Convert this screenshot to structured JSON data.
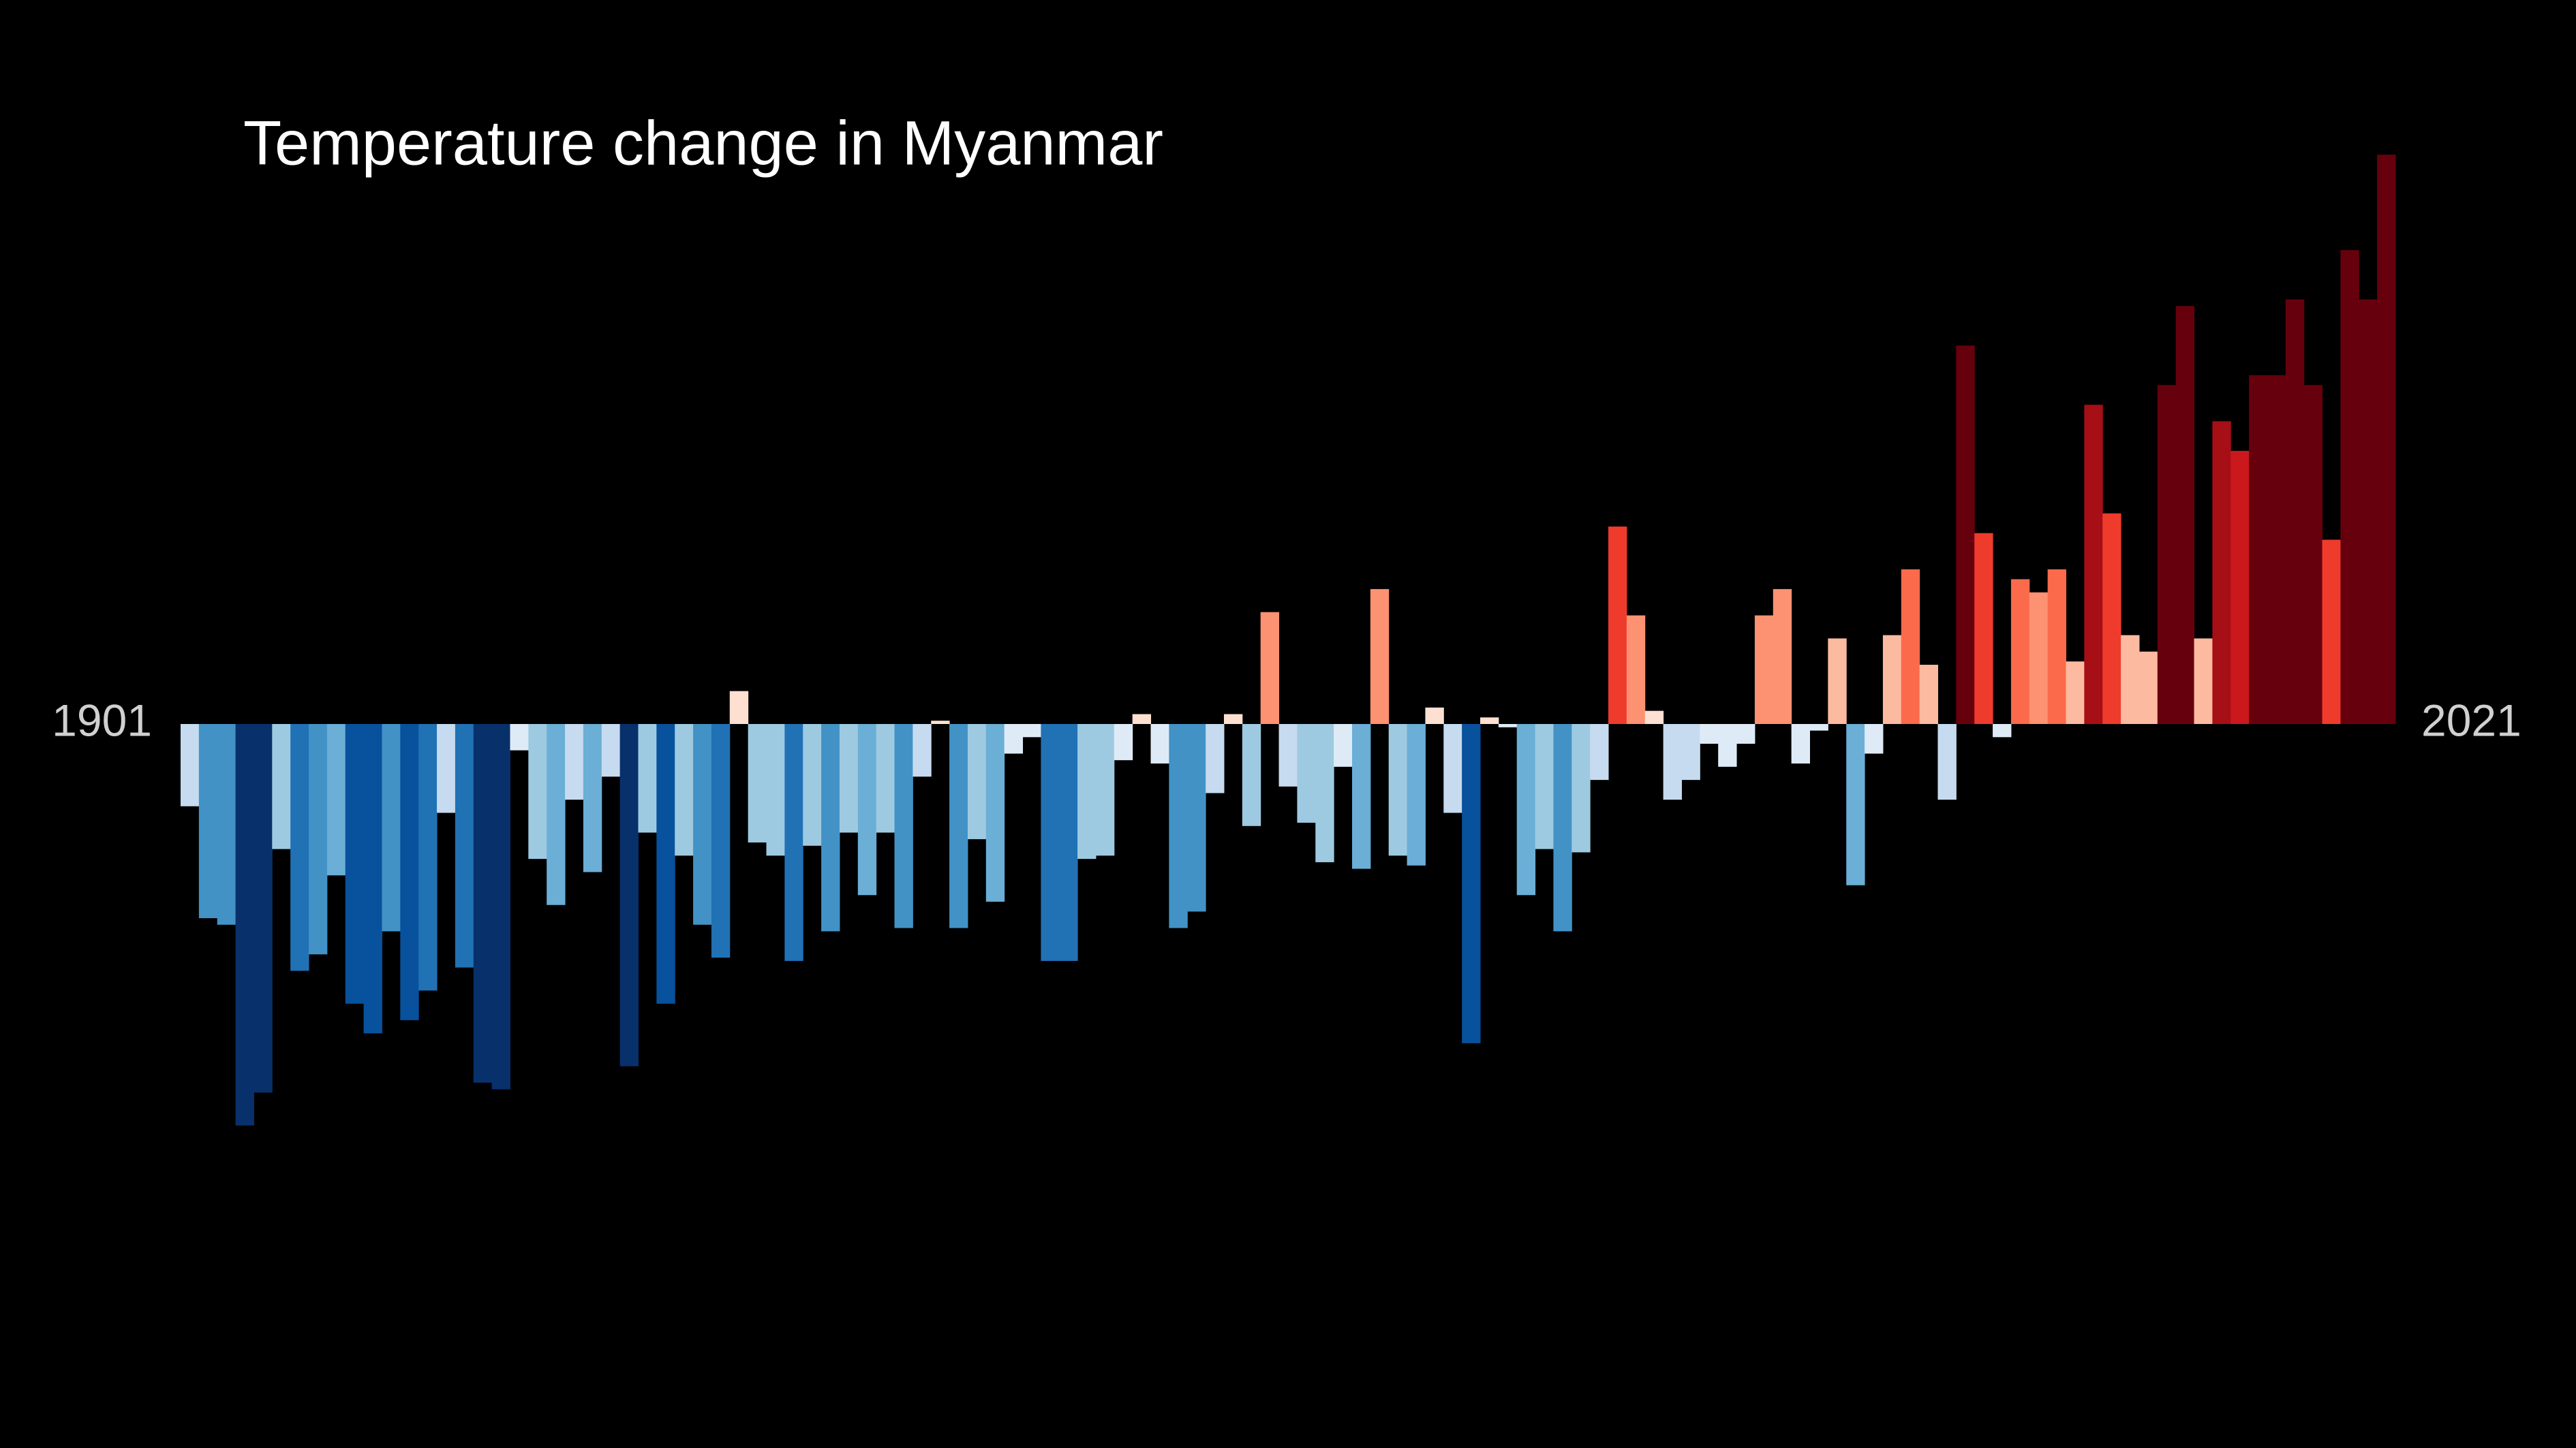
{
  "chart_data": {
    "type": "bar",
    "title": "Temperature change in Myanmar",
    "categories": [
      "1901",
      null,
      null,
      null,
      null,
      null,
      null,
      null,
      null,
      null,
      null,
      null,
      null,
      null,
      null,
      null,
      null,
      null,
      null,
      null,
      null,
      null,
      null,
      null,
      null,
      null,
      null,
      null,
      null,
      null,
      null,
      null,
      null,
      null,
      null,
      null,
      null,
      null,
      null,
      null,
      null,
      null,
      null,
      null,
      null,
      null,
      null,
      null,
      null,
      null,
      null,
      null,
      null,
      null,
      null,
      null,
      null,
      null,
      null,
      null,
      null,
      null,
      null,
      null,
      null,
      null,
      null,
      null,
      null,
      null,
      null,
      null,
      null,
      null,
      null,
      null,
      null,
      null,
      null,
      null,
      null,
      null,
      null,
      null,
      null,
      null,
      null,
      null,
      null,
      null,
      null,
      null,
      null,
      null,
      null,
      null,
      null,
      null,
      null,
      null,
      null,
      null,
      null,
      null,
      null,
      null,
      null,
      null,
      null,
      null,
      null,
      null,
      null,
      null,
      null,
      null,
      null,
      null,
      null,
      null,
      "2021"
    ],
    "values": [
      -0.25,
      -0.59,
      -0.61,
      -1.22,
      -1.12,
      -0.38,
      -0.75,
      -0.7,
      -0.46,
      -0.85,
      -0.94,
      -0.63,
      -0.9,
      -0.81,
      -0.27,
      -0.74,
      -1.09,
      -1.11,
      -0.08,
      -0.41,
      -0.55,
      -0.23,
      -0.45,
      -0.16,
      -1.04,
      -0.33,
      -0.85,
      -0.4,
      -0.61,
      -0.71,
      0.1,
      -0.36,
      -0.4,
      -0.72,
      -0.37,
      -0.63,
      -0.33,
      -0.52,
      -0.33,
      -0.62,
      -0.16,
      0.01,
      -0.62,
      -0.35,
      -0.54,
      -0.09,
      -0.04,
      -0.72,
      -0.72,
      -0.41,
      -0.4,
      -0.11,
      0.03,
      -0.12,
      -0.62,
      -0.57,
      -0.21,
      0.03,
      -0.31,
      0.34,
      -0.19,
      -0.3,
      -0.42,
      -0.13,
      -0.44,
      0.41,
      -0.4,
      -0.43,
      0.05,
      -0.27,
      -0.97,
      0.02,
      -0.01,
      -0.52,
      -0.38,
      -0.63,
      -0.39,
      -0.17,
      0.6,
      0.33,
      0.04,
      -0.23,
      -0.17,
      -0.06,
      -0.13,
      -0.06,
      0.33,
      0.41,
      -0.12,
      -0.02,
      0.26,
      -0.49,
      -0.09,
      0.27,
      0.47,
      0.18,
      -0.23,
      1.15,
      0.58,
      -0.04,
      0.44,
      0.4,
      0.47,
      0.19,
      0.97,
      0.64,
      0.27,
      0.22,
      1.03,
      1.27,
      0.26,
      0.92,
      0.83,
      1.06,
      1.06,
      1.29,
      1.03,
      0.56,
      1.44,
      1.29,
      1.73
    ],
    "ylim": [
      -2.2,
      2.2
    ],
    "color_range": [
      -1.12,
      1.12
    ],
    "palette": [
      "#08306b",
      "#08519c",
      "#2171b5",
      "#4292c6",
      "#6baed6",
      "#9ecae1",
      "#c6dbef",
      "#deebf7",
      "#fee0d2",
      "#fcbba1",
      "#fc9272",
      "#fb6a4a",
      "#ef3b2c",
      "#cb181d",
      "#a50f15",
      "#67000d"
    ],
    "background": "#000000"
  }
}
